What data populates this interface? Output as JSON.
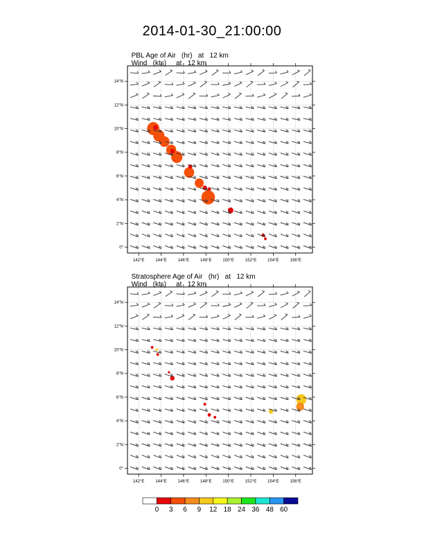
{
  "title": "2014-01-30_21:00:00",
  "colors": [
    "#ffffff",
    "#e50a0a",
    "#f5500a",
    "#f58c1e",
    "#f5c81e",
    "#f5f51e",
    "#aaf032",
    "#1ee61e",
    "#1ee6d2",
    "#2896f0",
    "#0a0a96"
  ],
  "chart_data": [
    {
      "type": "contour-map",
      "left_string": [
        "PBL Age of Air   (hr)   ",
        "Wind   (kts)     "
      ],
      "right_string": [
        "at   12 km",
        "at   12 km"
      ],
      "xticks": [
        "142°E",
        "144°E",
        "146°E",
        "148°E",
        "150°E",
        "152°E",
        "154°E",
        "156°E"
      ],
      "yticks": [
        "0°",
        "2°N",
        "4°N",
        "6°N",
        "8°N",
        "10°N",
        "12°N",
        "14°N"
      ],
      "xlim": [
        141,
        157.5
      ],
      "ylim": [
        -0.5,
        15.3
      ],
      "blobs": [
        {
          "lon": 143.3,
          "lat": 10.0,
          "r": 0.55,
          "level": 2
        },
        {
          "lon": 143.8,
          "lat": 9.4,
          "r": 0.5,
          "level": 2
        },
        {
          "lon": 144.3,
          "lat": 8.9,
          "r": 0.45,
          "level": 2
        },
        {
          "lon": 144.9,
          "lat": 8.2,
          "r": 0.45,
          "level": 2
        },
        {
          "lon": 145.4,
          "lat": 7.6,
          "r": 0.5,
          "level": 2
        },
        {
          "lon": 146.5,
          "lat": 6.3,
          "r": 0.45,
          "level": 2
        },
        {
          "lon": 147.4,
          "lat": 5.4,
          "r": 0.4,
          "level": 2
        },
        {
          "lon": 148.2,
          "lat": 4.2,
          "r": 0.6,
          "level": 2
        },
        {
          "lon": 143.5,
          "lat": 10.1,
          "r": 0.2,
          "level": 1
        },
        {
          "lon": 145.0,
          "lat": 8.1,
          "r": 0.2,
          "level": 1
        },
        {
          "lon": 146.6,
          "lat": 6.8,
          "r": 0.18,
          "level": 1
        },
        {
          "lon": 147.9,
          "lat": 5.0,
          "r": 0.2,
          "level": 1
        },
        {
          "lon": 148.3,
          "lat": 4.9,
          "r": 0.15,
          "level": 1
        },
        {
          "lon": 150.2,
          "lat": 3.1,
          "r": 0.25,
          "level": 1
        },
        {
          "lon": 153.1,
          "lat": 1.0,
          "r": 0.15,
          "level": 1
        },
        {
          "lon": 153.3,
          "lat": 0.7,
          "r": 0.12,
          "level": 1
        }
      ]
    },
    {
      "type": "contour-map",
      "left_string": [
        "Stratosphere Age of Air   (hr)   ",
        "Wind   (kts)     "
      ],
      "right_string": [
        "at   12 km",
        "at   12 km"
      ],
      "xticks": [
        "142°E",
        "144°E",
        "146°E",
        "148°E",
        "150°E",
        "152°E",
        "154°E",
        "156°E"
      ],
      "yticks": [
        "0°",
        "2°N",
        "4°N",
        "6°N",
        "8°N",
        "10°N",
        "12°N",
        "14°N"
      ],
      "xlim": [
        141,
        157.5
      ],
      "ylim": [
        -0.5,
        15.3
      ],
      "blobs": [
        {
          "lon": 143.2,
          "lat": 10.2,
          "r": 0.12,
          "level": 1
        },
        {
          "lon": 143.7,
          "lat": 9.6,
          "r": 0.12,
          "level": 1
        },
        {
          "lon": 143.6,
          "lat": 10.0,
          "r": 0.1,
          "level": 4
        },
        {
          "lon": 145.0,
          "lat": 7.6,
          "r": 0.2,
          "level": 1
        },
        {
          "lon": 144.7,
          "lat": 8.1,
          "r": 0.1,
          "level": 1
        },
        {
          "lon": 147.9,
          "lat": 5.4,
          "r": 0.12,
          "level": 1
        },
        {
          "lon": 148.3,
          "lat": 4.5,
          "r": 0.15,
          "level": 1
        },
        {
          "lon": 148.8,
          "lat": 4.3,
          "r": 0.12,
          "level": 1
        },
        {
          "lon": 153.8,
          "lat": 4.8,
          "r": 0.2,
          "level": 4
        },
        {
          "lon": 156.5,
          "lat": 5.8,
          "r": 0.45,
          "level": 4
        },
        {
          "lon": 156.4,
          "lat": 5.2,
          "r": 0.35,
          "level": 3
        }
      ]
    }
  ],
  "colorbar": {
    "labels": [
      "0",
      "3",
      "6",
      "9",
      "12",
      "18",
      "24",
      "36",
      "48",
      "60"
    ]
  }
}
